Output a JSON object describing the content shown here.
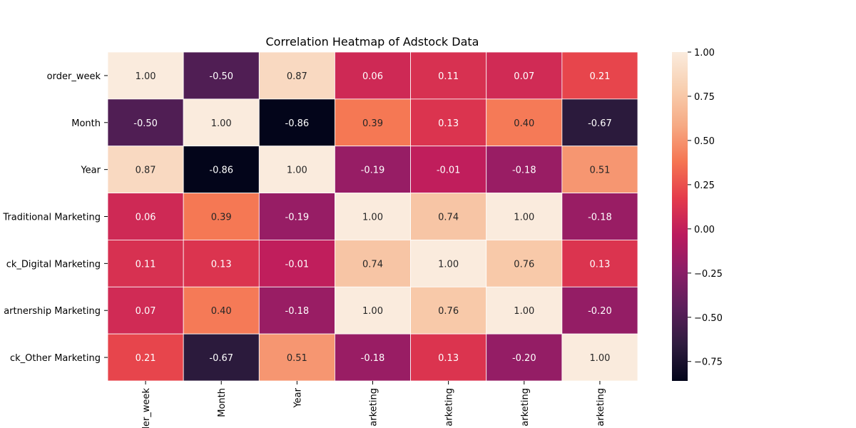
{
  "chart_data": {
    "type": "heatmap",
    "title": "Correlation Heatmap of Adstock Data",
    "row_labels": [
      "order_week",
      "Month",
      "Year",
      "Traditional Marketing",
      "ck_Digital Marketing",
      "artnership Marketing",
      "ck_Other Marketing"
    ],
    "col_labels": [
      "der_week",
      "Month",
      "Year",
      "arketing",
      "arketing",
      "arketing",
      "arketing"
    ],
    "values": [
      [
        1.0,
        -0.5,
        0.87,
        0.06,
        0.11,
        0.07,
        0.21
      ],
      [
        -0.5,
        1.0,
        -0.86,
        0.39,
        0.13,
        0.4,
        -0.67
      ],
      [
        0.87,
        -0.86,
        1.0,
        -0.19,
        -0.01,
        -0.18,
        0.51
      ],
      [
        0.06,
        0.39,
        -0.19,
        1.0,
        0.74,
        1.0,
        -0.18
      ],
      [
        0.11,
        0.13,
        -0.01,
        0.74,
        1.0,
        0.76,
        0.13
      ],
      [
        0.07,
        0.4,
        -0.18,
        1.0,
        0.76,
        1.0,
        -0.2
      ],
      [
        0.21,
        -0.67,
        0.51,
        -0.18,
        0.13,
        -0.2,
        1.0
      ]
    ],
    "annotation_labels": [
      [
        "1.00",
        "-0.50",
        "0.87",
        "0.06",
        "0.11",
        "0.07",
        "0.21"
      ],
      [
        "-0.50",
        "1.00",
        "-0.86",
        "0.39",
        "0.13",
        "0.40",
        "-0.67"
      ],
      [
        "0.87",
        "-0.86",
        "1.00",
        "-0.19",
        "-0.01",
        "-0.18",
        "0.51"
      ],
      [
        "0.06",
        "0.39",
        "-0.19",
        "1.00",
        "0.74",
        "1.00",
        "-0.18"
      ],
      [
        "0.11",
        "0.13",
        "-0.01",
        "0.74",
        "1.00",
        "0.76",
        "0.13"
      ],
      [
        "0.07",
        "0.40",
        "-0.18",
        "1.00",
        "0.76",
        "1.00",
        "-0.20"
      ],
      [
        "0.21",
        "-0.67",
        "0.51",
        "-0.18",
        "0.13",
        "-0.20",
        "1.00"
      ]
    ],
    "colorbar": {
      "min": -0.86,
      "max": 1.0,
      "ticks": [
        1.0,
        0.75,
        0.5,
        0.25,
        0.0,
        -0.25,
        -0.5,
        -0.75
      ],
      "tick_labels": [
        "1.00",
        "0.75",
        "0.50",
        "0.25",
        "0.00",
        "−0.25",
        "−0.50",
        "−0.75"
      ]
    },
    "colormap": "rocket",
    "colormap_stops": [
      "#03051a",
      "#2f1c3f",
      "#5c1f5b",
      "#8b1e67",
      "#bb1a5e",
      "#e43b4b",
      "#f57552",
      "#f6aa84",
      "#f8cfb0",
      "#faebdd"
    ],
    "cell_border_color": "#ffffff",
    "grid": false
  }
}
